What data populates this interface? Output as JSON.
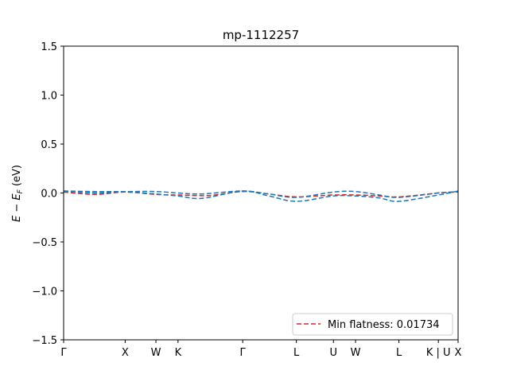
{
  "chart_data": {
    "type": "line",
    "title": "mp-1112257",
    "ylabel": "E − E_F (eV)",
    "ylim": [
      -1.5,
      1.5
    ],
    "xlim": [
      0,
      1
    ],
    "yticks": [
      -1.5,
      -1.0,
      -0.5,
      0.0,
      0.5,
      1.0,
      1.5
    ],
    "ytick_labels": [
      "−1.5",
      "−1.0",
      "−0.5",
      "0.0",
      "0.5",
      "1.0",
      "1.5"
    ],
    "kpoints": [
      {
        "label": "Γ",
        "pos": 0.0
      },
      {
        "label": "X",
        "pos": 0.156
      },
      {
        "label": "W",
        "pos": 0.234
      },
      {
        "label": "K",
        "pos": 0.29
      },
      {
        "label": "Γ",
        "pos": 0.454
      },
      {
        "label": "L",
        "pos": 0.59
      },
      {
        "label": "U",
        "pos": 0.684
      },
      {
        "label": "W",
        "pos": 0.74
      },
      {
        "label": "L",
        "pos": 0.85
      },
      {
        "label": "K | U",
        "pos": 0.95
      },
      {
        "label": "X",
        "pos": 1.0
      }
    ],
    "series": [
      {
        "name": "Min flatness: 0.01734",
        "color": "#d62728",
        "style": "dashed",
        "x": [
          0.0,
          0.08,
          0.156,
          0.234,
          0.29,
          0.37,
          0.454,
          0.52,
          0.59,
          0.684,
          0.74,
          0.8,
          0.85,
          0.95,
          1.0
        ],
        "y": [
          0.01,
          -0.015,
          0.01,
          -0.015,
          -0.02,
          -0.025,
          0.015,
          -0.01,
          -0.04,
          -0.02,
          -0.02,
          -0.03,
          -0.04,
          0.0,
          0.01
        ]
      },
      {
        "name": "",
        "color": "#1f77b4",
        "style": "dashed",
        "x": [
          0.0,
          0.08,
          0.156,
          0.234,
          0.29,
          0.35,
          0.454,
          0.52,
          0.59,
          0.684,
          0.74,
          0.8,
          0.85,
          0.95,
          1.0
        ],
        "y": [
          0.02,
          0.015,
          0.015,
          0.015,
          0.0,
          -0.01,
          0.02,
          -0.01,
          -0.045,
          0.01,
          0.015,
          -0.02,
          -0.045,
          0.0,
          0.015
        ]
      },
      {
        "name": "",
        "color": "#1f77b4",
        "style": "dashed",
        "x": [
          0.0,
          0.08,
          0.156,
          0.234,
          0.29,
          0.35,
          0.454,
          0.52,
          0.59,
          0.684,
          0.74,
          0.8,
          0.85,
          0.95,
          1.0
        ],
        "y": [
          0.02,
          0.0,
          0.01,
          -0.01,
          -0.03,
          -0.055,
          0.02,
          -0.03,
          -0.085,
          -0.03,
          -0.03,
          -0.05,
          -0.085,
          -0.02,
          0.02
        ]
      }
    ],
    "legend": {
      "location": "lower-right"
    }
  }
}
